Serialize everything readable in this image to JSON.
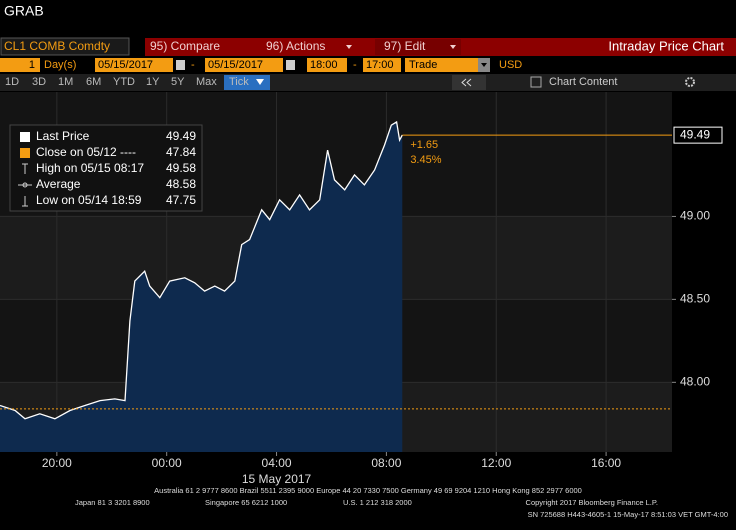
{
  "header": {
    "title": "GRAB"
  },
  "toolbar": {
    "security": "CL1 COMB Comdty",
    "compare": "95) Compare",
    "actions": "96) Actions",
    "edit": "97) Edit",
    "chart_name": "Intraday Price Chart"
  },
  "controls": {
    "period_count": "1",
    "period_unit": "Day(s)",
    "start_date": "05/15/2017",
    "date_separator": "-",
    "end_date": "05/15/2017",
    "start_time": "18:00",
    "time_separator": "-",
    "end_time": "17:00",
    "field": "Trade",
    "currency": "USD"
  },
  "range_buttons": [
    "1D",
    "3D",
    "1M",
    "6M",
    "YTD",
    "1Y",
    "5Y",
    "Max",
    "Tick"
  ],
  "chart_content": "Chart Content",
  "chart_data": {
    "type": "line",
    "x": [
      17.93,
      18.48,
      18.84,
      19.38,
      19.93,
      20.48,
      21.02,
      21.57,
      22.11,
      22.48,
      22.66,
      22.84,
      23.2,
      23.38,
      23.75,
      24.11,
      24.66,
      25.02,
      25.38,
      25.75,
      26.11,
      26.48,
      26.73,
      27.02,
      27.46,
      27.75,
      28.11,
      28.48,
      28.84,
      29.2,
      29.57,
      29.86,
      30.11,
      30.48,
      30.84,
      31.2,
      31.57,
      31.93,
      32.18,
      32.37,
      32.48,
      32.58
    ],
    "series": [
      {
        "name": "Last Price",
        "color": "#ffffff",
        "fill": "#0e2a4e",
        "values": [
          47.86,
          47.83,
          47.78,
          47.81,
          47.78,
          47.83,
          47.86,
          47.89,
          47.9,
          47.89,
          48.37,
          48.61,
          48.67,
          48.58,
          48.51,
          48.61,
          48.63,
          48.6,
          48.55,
          48.58,
          48.55,
          48.61,
          48.83,
          48.86,
          49.04,
          48.98,
          49.1,
          49.04,
          49.13,
          49.04,
          49.1,
          49.4,
          49.22,
          49.16,
          49.25,
          49.19,
          49.28,
          49.43,
          49.55,
          49.57,
          49.46,
          49.49
        ]
      }
    ],
    "xlim": [
      17.93,
      42.4
    ],
    "ylim": [
      47.58,
      49.75
    ],
    "xticks": [
      {
        "value": 20,
        "label": "20:00"
      },
      {
        "value": 24,
        "label": "00:00"
      },
      {
        "value": 28,
        "label": "04:00"
      },
      {
        "value": 32,
        "label": "08:00"
      },
      {
        "value": 36,
        "label": "12:00"
      },
      {
        "value": 40,
        "label": "16:00"
      }
    ],
    "yticks": [
      {
        "value": 48,
        "label": "48.00"
      },
      {
        "value": 48.5,
        "label": "48.50"
      },
      {
        "value": 49,
        "label": "49.00"
      }
    ],
    "x_date_label": "15 May 2017",
    "legend": [
      {
        "label": "Last Price",
        "value": 49.49,
        "color": "#ffffff"
      },
      {
        "label": "Close on 05/12 ----",
        "value": 47.84,
        "color": "#f39c12"
      },
      {
        "label": "High on 05/15 08:17",
        "value": 49.58
      },
      {
        "label": "Average",
        "value": 48.58
      },
      {
        "label": "Low on 05/14 18:59",
        "value": 47.75
      }
    ],
    "annotations": {
      "change": "+1.65",
      "change_pct": "3.45%"
    },
    "grid": true
  },
  "footer": {
    "line1": "Australia 61 2 9777 8600 Brazil 5511 2395 9000 Europe 44 20 7330 7500 Germany 49 69 9204 1210 Hong Kong 852 2977 6000",
    "japan": "Japan 81 3 3201 8900",
    "singapore": "Singapore 65 6212 1000",
    "us": "U.S. 1 212 318 2000",
    "copyright": "Copyright 2017 Bloomberg Finance L.P.",
    "session": "SN 725688 H443-4605-1 15-May-17  8:51:03 VET  GMT-4:00"
  }
}
